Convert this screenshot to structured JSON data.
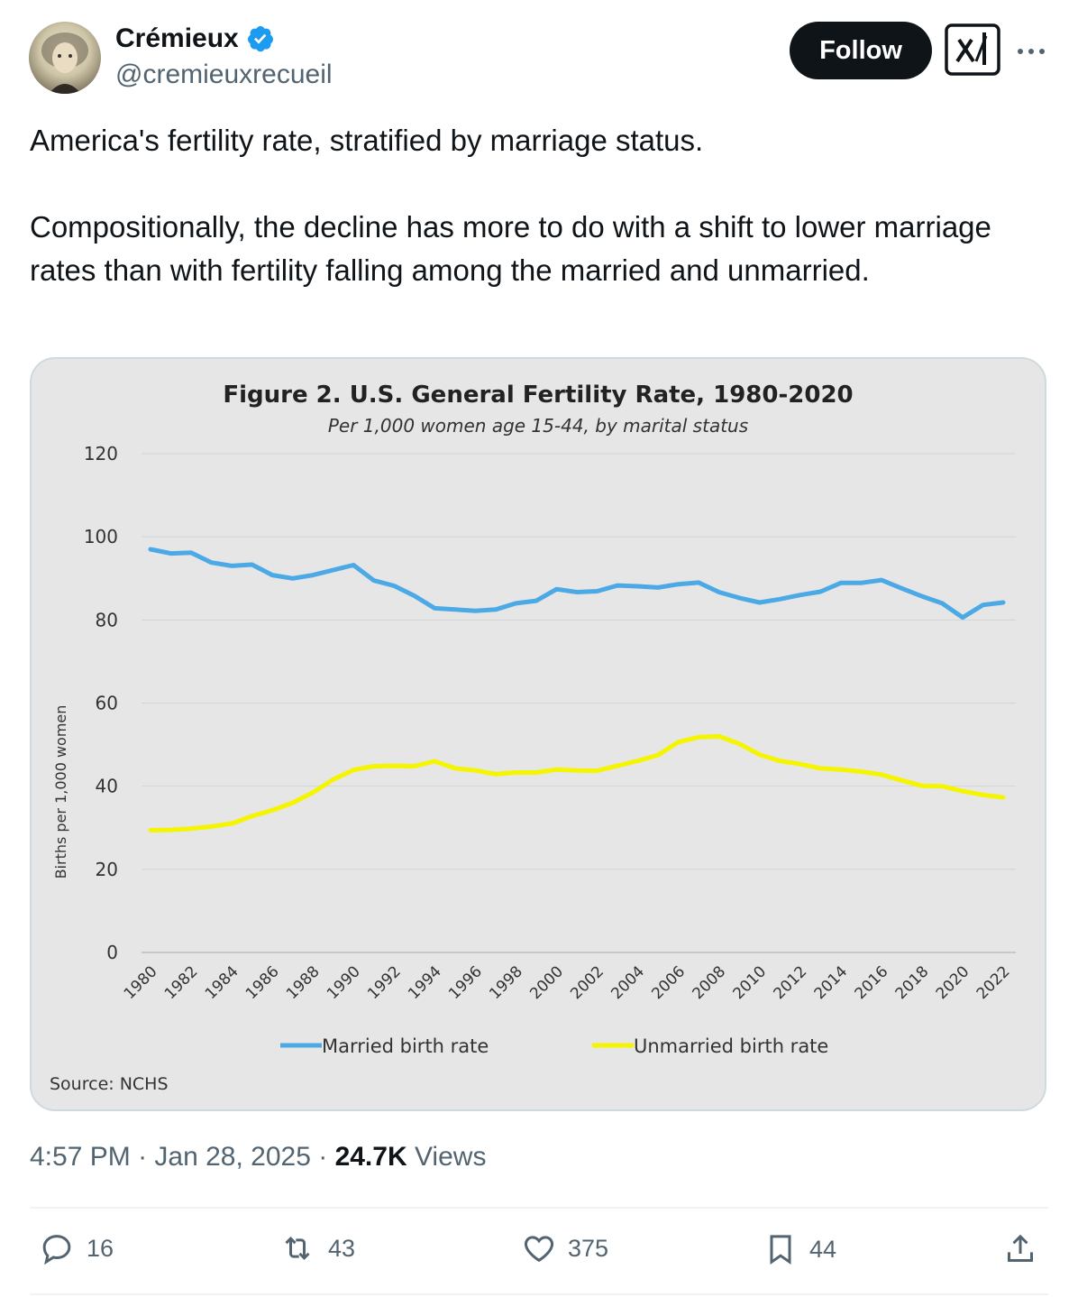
{
  "author": {
    "name": "Crémieux",
    "handle": "@cremieuxrecueil",
    "verified": true
  },
  "buttons": {
    "follow_label": "Follow"
  },
  "tweet": {
    "text": "America's fertility rate, stratified by marriage status.\n\nCompositionally, the decline has more to do with a shift to lower marriage rates than with fertility falling among the married and unmarried."
  },
  "meta": {
    "time": "4:57 PM",
    "sep1": " · ",
    "date": "Jan 28, 2025",
    "sep2": " · ",
    "views_count": "24.7K",
    "views_label": " Views"
  },
  "actions": {
    "replies": "16",
    "reposts": "43",
    "likes": "375",
    "bookmarks": "44"
  },
  "colors": {
    "married": "#4ba9e6",
    "unmarried": "#f5f500",
    "verified_badge": "#1d9bf0"
  },
  "chart_data": {
    "type": "line",
    "title": "Figure 2. U.S. General Fertility Rate, 1980-2020",
    "subtitle": "Per 1,000 women age 15-44, by marital status",
    "ylabel": "Births per 1,000 women",
    "xlabel": "",
    "source": "Source: NCHS",
    "ylim": [
      0,
      120
    ],
    "yticks": [
      "0",
      "20",
      "40",
      "60",
      "80",
      "100",
      "120"
    ],
    "xticks": [
      "1980",
      "1982",
      "1984",
      "1986",
      "1988",
      "1990",
      "1992",
      "1994",
      "1996",
      "1998",
      "2000",
      "2002",
      "2004",
      "2006",
      "2008",
      "2010",
      "2012",
      "2014",
      "2016",
      "2018",
      "2020",
      "2022"
    ],
    "grid": true,
    "legend_position": "bottom",
    "x": [
      1980,
      1981,
      1982,
      1983,
      1984,
      1985,
      1986,
      1987,
      1988,
      1989,
      1990,
      1991,
      1992,
      1993,
      1994,
      1995,
      1996,
      1997,
      1998,
      1999,
      2000,
      2001,
      2002,
      2003,
      2004,
      2005,
      2006,
      2007,
      2008,
      2009,
      2010,
      2011,
      2012,
      2013,
      2014,
      2015,
      2016,
      2017,
      2018,
      2019,
      2020,
      2021,
      2022
    ],
    "series": [
      {
        "name": "Married birth rate",
        "values": [
          97.0,
          96.0,
          96.2,
          93.8,
          93.0,
          93.3,
          90.8,
          90.0,
          90.8,
          92.0,
          93.2,
          89.5,
          88.2,
          85.8,
          82.8,
          82.5,
          82.2,
          82.5,
          84.0,
          84.6,
          87.4,
          86.7,
          86.9,
          88.3,
          88.1,
          87.8,
          88.6,
          89.0,
          86.7,
          85.3,
          84.2,
          85.0,
          86.0,
          86.8,
          88.9,
          88.9,
          89.6,
          87.6,
          85.7,
          84.0,
          80.6,
          83.6,
          84.2
        ]
      },
      {
        "name": "Unmarried birth rate",
        "values": [
          29.4,
          29.5,
          29.8,
          30.3,
          31.0,
          32.8,
          34.2,
          36.0,
          38.5,
          41.6,
          43.9,
          44.8,
          44.9,
          44.8,
          46.0,
          44.3,
          43.8,
          42.9,
          43.3,
          43.3,
          44.0,
          43.8,
          43.7,
          44.9,
          46.1,
          47.5,
          50.6,
          51.8,
          52.0,
          50.2,
          47.6,
          46.1,
          45.3,
          44.3,
          44.0,
          43.5,
          42.8,
          41.4,
          40.1,
          40.0,
          38.8,
          37.9,
          37.3
        ]
      }
    ]
  }
}
